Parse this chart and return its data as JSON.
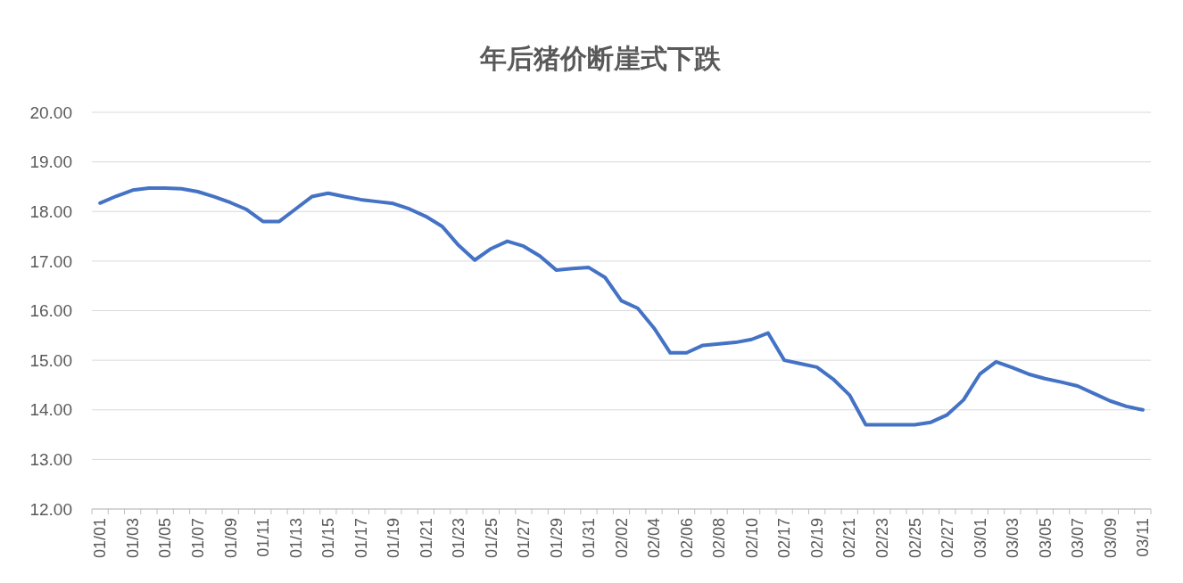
{
  "chart_data": {
    "type": "line",
    "title": "年后猪价断崖式下跌",
    "categories": [
      "01/01",
      null,
      "01/03",
      null,
      "01/05",
      null,
      "01/07",
      null,
      "01/09",
      null,
      "01/11",
      null,
      "01/13",
      null,
      "01/15",
      null,
      "01/17",
      null,
      "01/19",
      null,
      "01/21",
      null,
      "01/23",
      null,
      "01/25",
      null,
      "01/27",
      null,
      "01/29",
      null,
      "01/31",
      null,
      "02/02",
      null,
      "02/04",
      null,
      "02/06",
      null,
      "02/08",
      null,
      "02/10",
      null,
      "02/17",
      null,
      "02/19",
      null,
      "02/21",
      null,
      "02/23",
      null,
      "02/25",
      null,
      "02/27",
      null,
      "03/01",
      null,
      "03/03",
      null,
      "03/05",
      null,
      "03/07",
      null,
      "03/09",
      null,
      "03/11"
    ],
    "series": [
      {
        "color": "#4472c4",
        "values": [
          18.17,
          18.31,
          18.43,
          18.47,
          18.47,
          18.46,
          18.4,
          18.3,
          18.18,
          18.04,
          17.8,
          17.8,
          18.05,
          18.3,
          18.37,
          18.3,
          18.24,
          18.2,
          18.16,
          18.05,
          17.9,
          17.7,
          17.32,
          17.02,
          17.25,
          17.4,
          17.3,
          17.1,
          16.82,
          16.85,
          16.87,
          16.67,
          16.2,
          16.05,
          15.65,
          15.15,
          15.15,
          15.3,
          15.33,
          15.36,
          15.42,
          15.55,
          15.0,
          14.93,
          14.86,
          14.62,
          14.3,
          13.7,
          13.7,
          13.7,
          13.7,
          13.75,
          13.9,
          14.2,
          14.72,
          14.97,
          14.85,
          14.72,
          14.63,
          14.56,
          14.48,
          14.33,
          14.18,
          14.07,
          14.0
        ]
      }
    ],
    "ylim": [
      12,
      20
    ],
    "yticks": [
      {
        "value": 12,
        "label": "12.00"
      },
      {
        "value": 13,
        "label": "13.00"
      },
      {
        "value": 14,
        "label": "14.00"
      },
      {
        "value": 15,
        "label": "15.00"
      },
      {
        "value": 16,
        "label": "16.00"
      },
      {
        "value": 17,
        "label": "17.00"
      },
      {
        "value": 18,
        "label": "18.00"
      },
      {
        "value": 19,
        "label": "19.00"
      },
      {
        "value": 20,
        "label": "20.00"
      }
    ],
    "grid": "y",
    "marker": "none",
    "line_style": "solid"
  }
}
